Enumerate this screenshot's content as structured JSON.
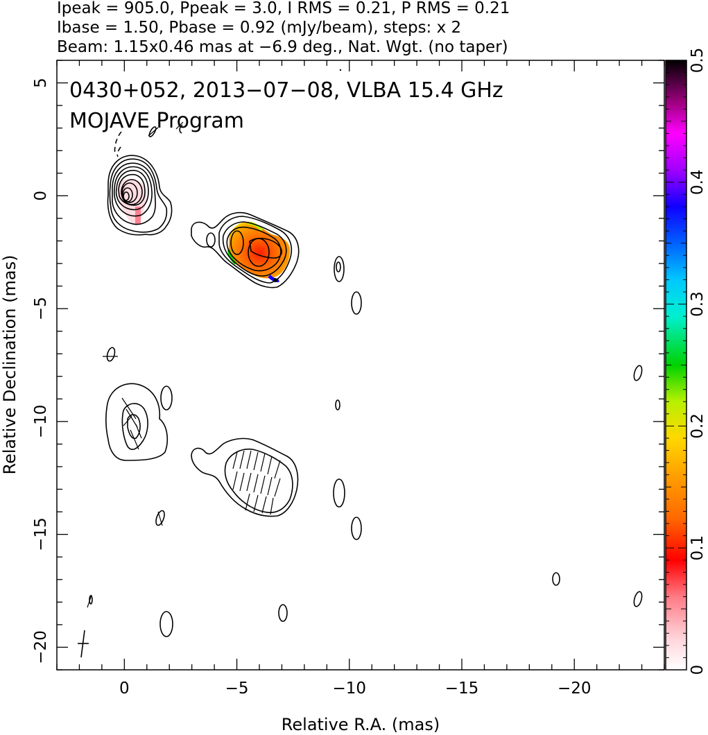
{
  "header": {
    "line1": "Ipeak = 905.0, Ppeak = 3.0, I RMS = 0.21, P RMS = 0.21",
    "line2": "Ibase = 1.50, Pbase = 0.92 (mJy/beam), steps: x 2",
    "line3": "Beam: 1.15x0.46 mas at −6.9 deg., Nat. Wgt. (no taper)"
  },
  "plot_title": {
    "line1": "0430+052, 2013−07−08, VLBA 15.4 GHz",
    "line2": "MOJAVE Program"
  },
  "chart_data": {
    "type": "contour",
    "xlabel": "Relative R.A. (mas)",
    "ylabel": "Relative Declination (mas)",
    "xlim": [
      3,
      -24
    ],
    "ylim": [
      -21,
      6
    ],
    "x_ticks": [
      {
        "v": 0,
        "label": "0"
      },
      {
        "v": -5,
        "label": "−5"
      },
      {
        "v": -10,
        "label": "−10"
      },
      {
        "v": -15,
        "label": "−15"
      },
      {
        "v": -20,
        "label": "−20"
      }
    ],
    "y_ticks": [
      {
        "v": 5,
        "label": "5"
      },
      {
        "v": 0,
        "label": "0"
      },
      {
        "v": -5,
        "label": "−5"
      },
      {
        "v": -10,
        "label": "−10"
      },
      {
        "v": -15,
        "label": "−15"
      },
      {
        "v": -20,
        "label": "−20"
      }
    ],
    "colorbar": {
      "range": [
        0,
        0.5
      ],
      "ticks": [
        {
          "v": 0,
          "label": "0"
        },
        {
          "v": 0.1,
          "label": "0.1"
        },
        {
          "v": 0.2,
          "label": "0.2"
        },
        {
          "v": 0.3,
          "label": "0.3"
        },
        {
          "v": 0.4,
          "label": "0.4"
        },
        {
          "v": 0.5,
          "label": "0.5"
        }
      ]
    },
    "intensity_peak_mJy_per_beam": 905.0,
    "polarized_peak_mJy_per_beam": 3.0,
    "intensity_rms": 0.21,
    "polarized_rms": 0.21,
    "intensity_base": 1.5,
    "polarized_base": 0.92,
    "contour_step_factor": 2,
    "beam": {
      "major_mas": 1.15,
      "minor_mas": 0.46,
      "pa_deg": -6.9
    },
    "core": {
      "x": 0.1,
      "y": 0.0
    },
    "jet_components": [
      {
        "x": -5.0,
        "y": -2.1
      },
      {
        "x": -5.8,
        "y": -2.6
      }
    ],
    "fractional_polarization": {
      "typical": 0.12,
      "max": 0.5
    }
  }
}
